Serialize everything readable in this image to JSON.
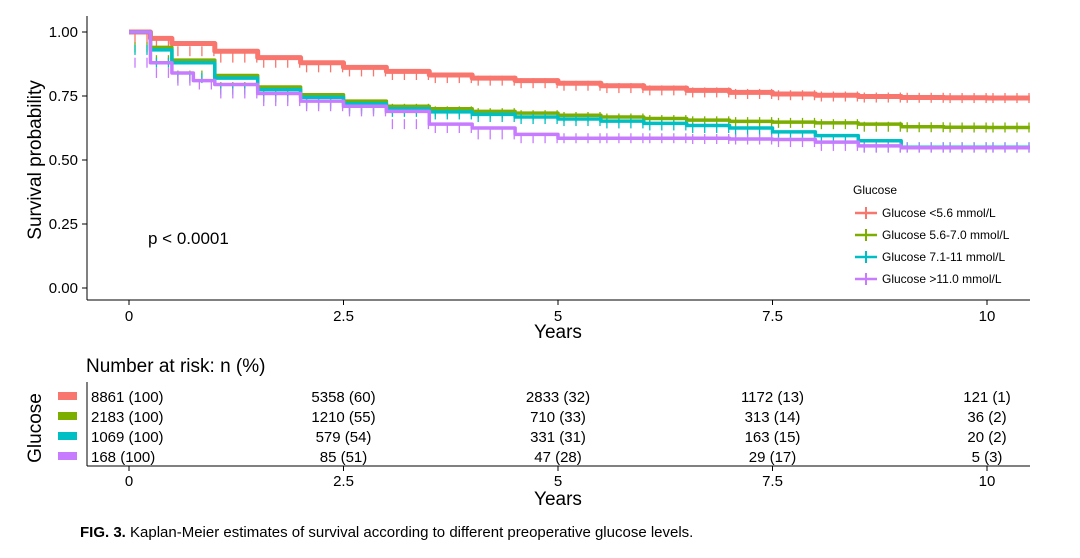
{
  "chart_data": {
    "type": "line",
    "subtype": "kaplan-meier",
    "xlabel": "Years",
    "ylabel": "Survival probability",
    "xlim": [
      -0.5,
      10.5
    ],
    "ylim": [
      0,
      1
    ],
    "x_ticks": [
      0,
      2.5,
      5,
      7.5,
      10
    ],
    "x_tick_labels": [
      "0",
      "2.5",
      "5",
      "7.5",
      "10"
    ],
    "y_ticks": [
      0,
      0.25,
      0.5,
      0.75,
      1.0
    ],
    "y_tick_labels": [
      "0.00",
      "0.25",
      "0.50",
      "0.75",
      "1.00"
    ],
    "grid": false,
    "annotation": "p < 0.0001",
    "legend": {
      "title": "Glucose",
      "placement": "right"
    },
    "series": [
      {
        "name": "Glucose <5.6 mmol/L",
        "color": "#F8766D",
        "x": [
          0,
          0.25,
          0.5,
          1,
          1.5,
          2,
          2.5,
          3,
          3.5,
          4,
          4.5,
          5,
          5.5,
          6,
          6.5,
          7,
          7.5,
          8,
          8.5,
          9,
          9.5,
          10,
          10.5
        ],
        "y": [
          1.0,
          0.975,
          0.955,
          0.925,
          0.9,
          0.88,
          0.862,
          0.846,
          0.832,
          0.82,
          0.81,
          0.8,
          0.79,
          0.781,
          0.772,
          0.764,
          0.758,
          0.753,
          0.748,
          0.744,
          0.743,
          0.742,
          0.742
        ]
      },
      {
        "name": "Glucose 5.6-7.0 mmol/L",
        "color": "#7CAE00",
        "x": [
          0,
          0.25,
          0.5,
          1,
          1.5,
          2,
          2.5,
          3,
          3.5,
          4,
          4.5,
          5,
          5.5,
          6,
          6.5,
          7,
          7.5,
          8,
          8.5,
          9,
          9.5,
          10,
          10.5
        ],
        "y": [
          1.0,
          0.94,
          0.89,
          0.83,
          0.785,
          0.755,
          0.73,
          0.71,
          0.7,
          0.69,
          0.683,
          0.675,
          0.668,
          0.662,
          0.656,
          0.651,
          0.648,
          0.645,
          0.64,
          0.63,
          0.628,
          0.627,
          0.627
        ]
      },
      {
        "name": "Glucose 7.1-11 mmol/L",
        "color": "#00BFC4",
        "x": [
          0,
          0.25,
          0.5,
          1,
          1.5,
          2,
          2.5,
          3,
          3.5,
          4,
          4.5,
          5,
          5.5,
          6,
          6.5,
          7,
          7.5,
          8,
          8.5,
          9,
          9.5,
          10,
          10.5
        ],
        "y": [
          1.0,
          0.93,
          0.88,
          0.82,
          0.775,
          0.745,
          0.72,
          0.7,
          0.688,
          0.678,
          0.668,
          0.66,
          0.652,
          0.643,
          0.635,
          0.625,
          0.61,
          0.595,
          0.575,
          0.55,
          0.55,
          0.55,
          0.55
        ]
      },
      {
        "name": "Glucose >11.0 mmol/L",
        "color": "#C77CFF",
        "x": [
          0,
          0.25,
          0.5,
          0.75,
          1,
          1.5,
          2,
          2.5,
          3,
          3.5,
          4,
          4.5,
          5,
          5.5,
          6,
          6.5,
          7,
          7.5,
          8,
          8.5,
          9,
          9.5,
          10,
          10.5
        ],
        "y": [
          1.0,
          0.88,
          0.84,
          0.81,
          0.795,
          0.76,
          0.73,
          0.71,
          0.69,
          0.64,
          0.625,
          0.6,
          0.585,
          0.585,
          0.585,
          0.585,
          0.582,
          0.58,
          0.57,
          0.555,
          0.548,
          0.548,
          0.548,
          0.548
        ]
      }
    ]
  },
  "risk_table": {
    "title": "Number at risk: n (%)",
    "ylabel": "Glucose",
    "xlabel": "Years",
    "x_tick_labels": [
      "0",
      "2.5",
      "5",
      "7.5",
      "10"
    ],
    "rows": [
      {
        "color": "#F8766D",
        "cells": [
          "8861 (100)",
          "5358 (60)",
          "2833 (32)",
          "1172 (13)",
          "121 (1)"
        ]
      },
      {
        "color": "#7CAE00",
        "cells": [
          "2183 (100)",
          "1210 (55)",
          "710 (33)",
          "313 (14)",
          "36 (2)"
        ]
      },
      {
        "color": "#00BFC4",
        "cells": [
          "1069 (100)",
          "579 (54)",
          "331 (31)",
          "163 (15)",
          "20 (2)"
        ]
      },
      {
        "color": "#C77CFF",
        "cells": [
          "168 (100)",
          "85 (51)",
          "47 (28)",
          "29 (17)",
          "5 (3)"
        ]
      }
    ]
  },
  "caption": {
    "label": "FIG. 3.",
    "text": " Kaplan-Meier estimates of survival according to different preoperative glucose levels."
  }
}
